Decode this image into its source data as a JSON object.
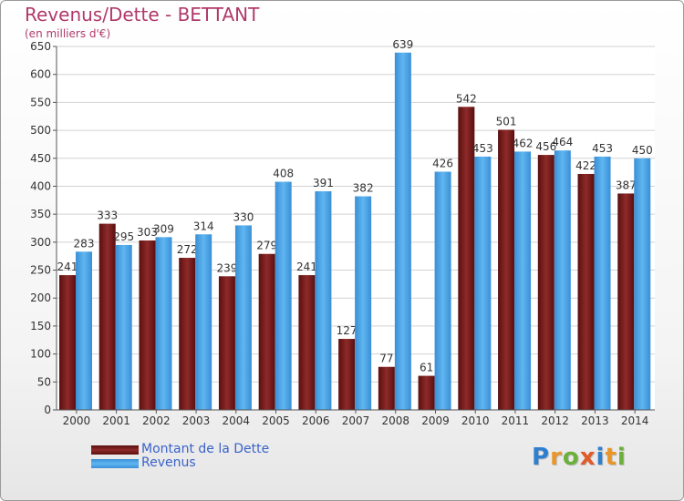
{
  "header": {
    "title": "Revenus/Dette - BETTANT",
    "subtitle": "(en milliers d'€)"
  },
  "legend": {
    "debt_label": "Montant de la Dette",
    "revenue_label": "Revenus"
  },
  "logo": {
    "text": "Proxiti"
  },
  "colors": {
    "debt": "#7a1f1f",
    "revenue": "#4aa3e6",
    "title": "#b03a6a",
    "legend_text": "#3a62c8"
  },
  "chart_data": {
    "type": "bar",
    "title": "Revenus/Dette - BETTANT",
    "subtitle": "(en milliers d'€)",
    "categories": [
      "2000",
      "2001",
      "2002",
      "2003",
      "2004",
      "2005",
      "2006",
      "2007",
      "2008",
      "2009",
      "2010",
      "2011",
      "2012",
      "2013",
      "2014"
    ],
    "series": [
      {
        "name": "Montant de la Dette",
        "values": [
          241,
          333,
          303,
          272,
          239,
          279,
          241,
          127,
          77,
          61,
          542,
          501,
          456,
          422,
          387
        ]
      },
      {
        "name": "Revenus",
        "values": [
          283,
          295,
          309,
          314,
          330,
          408,
          391,
          382,
          639,
          426,
          453,
          462,
          464,
          453,
          450
        ]
      }
    ],
    "ylim": [
      0,
      650
    ],
    "yticks": [
      0,
      50,
      100,
      150,
      200,
      250,
      300,
      350,
      400,
      450,
      500,
      550,
      600,
      650
    ],
    "grid": true,
    "legend_position": "bottom-left"
  }
}
